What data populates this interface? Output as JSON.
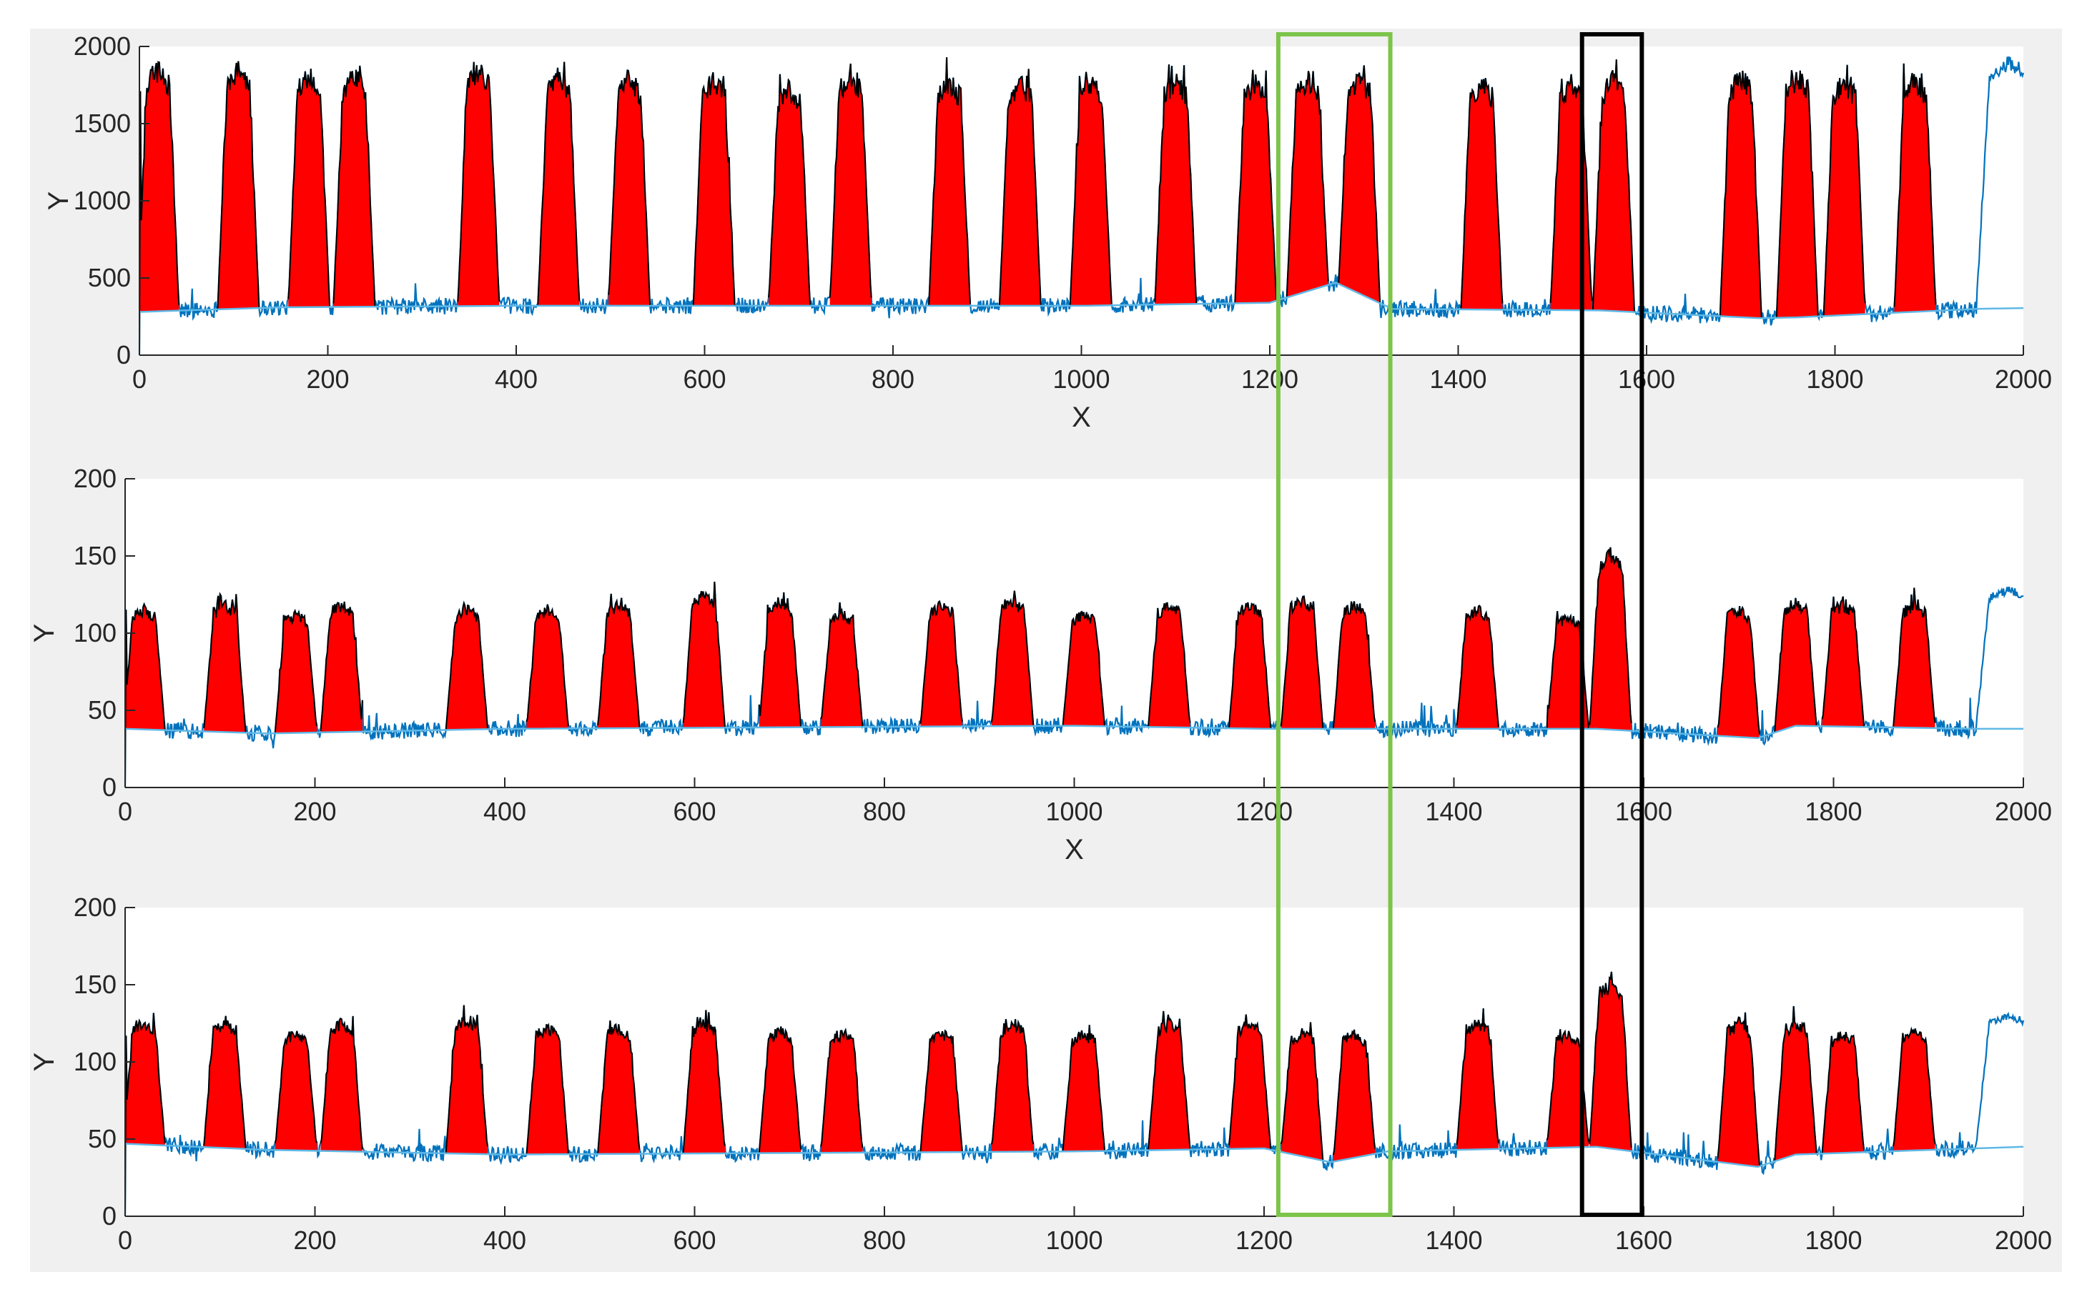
{
  "chart_data": [
    {
      "type": "area",
      "name": "panel-1",
      "title": "",
      "xlabel": "X",
      "ylabel": "Y",
      "xlim": [
        0,
        2000
      ],
      "ylim": [
        0,
        2000
      ],
      "xticks": [
        0,
        200,
        400,
        600,
        800,
        1000,
        1200,
        1400,
        1600,
        1800,
        2000
      ],
      "xtick_labels": [
        "0",
        "200",
        "400",
        "600",
        "800",
        "1000",
        "1200",
        "1400",
        "1600",
        "1800",
        "2000"
      ],
      "yticks": [
        0,
        500,
        1000,
        1500,
        2000
      ],
      "ytick_labels": [
        "0",
        "500",
        "1000",
        "1500",
        "2000"
      ],
      "noise_amp": 90,
      "baseline_points": [
        [
          0,
          280
        ],
        [
          150,
          310
        ],
        [
          400,
          320
        ],
        [
          1000,
          320
        ],
        [
          1200,
          340
        ],
        [
          1270,
          470
        ],
        [
          1330,
          300
        ],
        [
          1550,
          290
        ],
        [
          1720,
          240
        ],
        [
          1760,
          245
        ],
        [
          1950,
          300
        ],
        [
          2000,
          305
        ]
      ],
      "peaks": [
        [
          20,
          1850
        ],
        [
          105,
          1850
        ],
        [
          180,
          1800
        ],
        [
          228,
          1800
        ],
        [
          360,
          1830
        ],
        [
          445,
          1800
        ],
        [
          520,
          1780
        ],
        [
          610,
          1780
        ],
        [
          690,
          1720
        ],
        [
          755,
          1800
        ],
        [
          860,
          1760
        ],
        [
          935,
          1760
        ],
        [
          1010,
          1760
        ],
        [
          1100,
          1770
        ],
        [
          1185,
          1760
        ],
        [
          1240,
          1780
        ],
        [
          1295,
          1780
        ],
        [
          1425,
          1760
        ],
        [
          1520,
          1750
        ],
        [
          1565,
          1780
        ],
        [
          1700,
          1800
        ],
        [
          1760,
          1800
        ],
        [
          1810,
          1760
        ],
        [
          1885,
          1780
        ]
      ],
      "blue_bump": [
        1985,
        1900
      ],
      "peak_half_width": 22,
      "noise_spike": 120
    },
    {
      "type": "area",
      "name": "panel-2",
      "title": "",
      "xlabel": "X",
      "ylabel": "Y",
      "xlim": [
        0,
        2000
      ],
      "ylim": [
        0,
        200
      ],
      "xticks": [
        0,
        200,
        400,
        600,
        800,
        1000,
        1200,
        1400,
        1600,
        1800,
        2000
      ],
      "xtick_labels": [
        "0",
        "200",
        "400",
        "600",
        "800",
        "1000",
        "1200",
        "1400",
        "1600",
        "1800",
        "2000"
      ],
      "yticks": [
        0,
        50,
        100,
        150,
        200
      ],
      "ytick_labels": [
        "0",
        "50",
        "100",
        "150",
        "200"
      ],
      "noise_amp": 9,
      "baseline_points": [
        [
          0,
          38
        ],
        [
          150,
          35
        ],
        [
          400,
          38
        ],
        [
          1000,
          40
        ],
        [
          1200,
          38
        ],
        [
          1550,
          38
        ],
        [
          1720,
          32
        ],
        [
          1760,
          40
        ],
        [
          1950,
          38
        ],
        [
          2000,
          38
        ]
      ],
      "peaks": [
        [
          20,
          115
        ],
        [
          105,
          118
        ],
        [
          180,
          112
        ],
        [
          228,
          118
        ],
        [
          360,
          115
        ],
        [
          445,
          115
        ],
        [
          520,
          118
        ],
        [
          610,
          125
        ],
        [
          690,
          120
        ],
        [
          755,
          112
        ],
        [
          860,
          118
        ],
        [
          935,
          120
        ],
        [
          1010,
          112
        ],
        [
          1100,
          118
        ],
        [
          1185,
          118
        ],
        [
          1240,
          122
        ],
        [
          1295,
          118
        ],
        [
          1425,
          115
        ],
        [
          1520,
          110
        ],
        [
          1565,
          150
        ],
        [
          1700,
          115
        ],
        [
          1760,
          120
        ],
        [
          1810,
          118
        ],
        [
          1885,
          118
        ]
      ],
      "blue_bump": [
        1985,
        128
      ],
      "peak_half_width": 22,
      "noise_spike": 14
    },
    {
      "type": "area",
      "name": "panel-3",
      "title": "",
      "xlabel": "",
      "ylabel": "Y",
      "xlim": [
        0,
        2000
      ],
      "ylim": [
        0,
        200
      ],
      "xticks": [
        0,
        200,
        400,
        600,
        800,
        1000,
        1200,
        1400,
        1600,
        1800,
        2000
      ],
      "xtick_labels": [
        "0",
        "200",
        "400",
        "600",
        "800",
        "1000",
        "1200",
        "1400",
        "1600",
        "1800",
        "2000"
      ],
      "yticks": [
        0,
        50,
        100,
        150,
        200
      ],
      "ytick_labels": [
        "0",
        "50",
        "100",
        "150",
        "200"
      ],
      "noise_amp": 9,
      "baseline_points": [
        [
          0,
          47
        ],
        [
          150,
          43
        ],
        [
          400,
          40
        ],
        [
          1000,
          42
        ],
        [
          1200,
          44
        ],
        [
          1270,
          35
        ],
        [
          1330,
          42
        ],
        [
          1550,
          45
        ],
        [
          1720,
          32
        ],
        [
          1760,
          40
        ],
        [
          1950,
          44
        ],
        [
          2000,
          45
        ]
      ],
      "peaks": [
        [
          20,
          125
        ],
        [
          105,
          125
        ],
        [
          180,
          118
        ],
        [
          228,
          125
        ],
        [
          360,
          128
        ],
        [
          445,
          122
        ],
        [
          520,
          122
        ],
        [
          610,
          125
        ],
        [
          690,
          120
        ],
        [
          755,
          118
        ],
        [
          860,
          118
        ],
        [
          935,
          125
        ],
        [
          1010,
          118
        ],
        [
          1100,
          125
        ],
        [
          1185,
          125
        ],
        [
          1240,
          118
        ],
        [
          1295,
          118
        ],
        [
          1425,
          125
        ],
        [
          1520,
          118
        ],
        [
          1565,
          150
        ],
        [
          1700,
          125
        ],
        [
          1760,
          125
        ],
        [
          1810,
          118
        ],
        [
          1885,
          120
        ]
      ],
      "blue_bump": [
        1985,
        130
      ],
      "peak_half_width": 22,
      "noise_spike": 14
    }
  ],
  "annotations": [
    {
      "name": "green-highlight-box",
      "color": "#7cc44a",
      "x_range": [
        1215,
        1333
      ]
    },
    {
      "name": "black-highlight-box",
      "color": "#000000",
      "x_range": [
        1535,
        1598
      ]
    }
  ],
  "colors": {
    "figure_bg": "#f0f0f0",
    "axes_bg": "#ffffff",
    "fill": "#ff0000",
    "peak_outline": "#000000",
    "signal_line": "#0072bd",
    "baseline_line": "#5fb8e6",
    "axis": "#262626"
  }
}
